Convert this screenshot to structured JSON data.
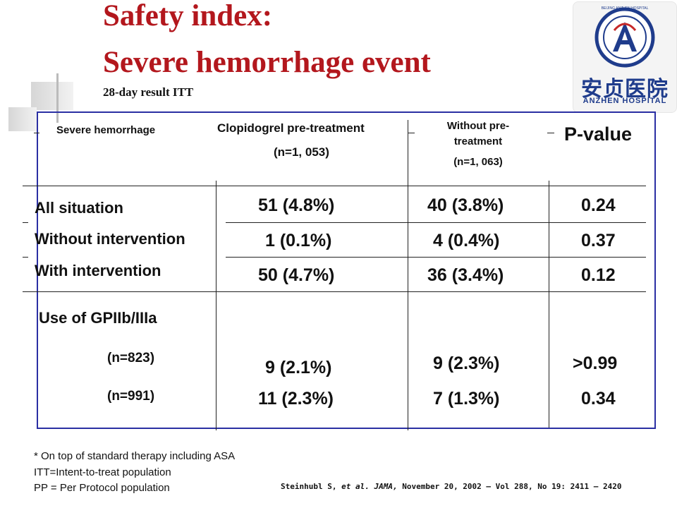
{
  "title": {
    "line1": "Safety index:",
    "line2": "Severe hemorrhage event",
    "subtitle": "28-day result ITT"
  },
  "logo": {
    "icon": "anzhen-hospital-logo",
    "name_cn": "安贞医院",
    "name_en": "ANZHEN HOSPITAL",
    "ring_text": "BEIJING ANZHEN HOSPITAL",
    "color": "#1f3c8c"
  },
  "table": {
    "header": {
      "row_label": "Severe hemorrhage",
      "col1": "Clopidogrel pre-treatment",
      "col1_n": "(n=1, 053)",
      "col2_line1": "Without pre-",
      "col2_line2": "treatment",
      "col2_n": "(n=1, 063)",
      "col3": "P-value"
    },
    "rows": [
      {
        "label": "All situation",
        "clopidogrel": "51  (4.8%)",
        "without": "40  (3.8%)",
        "p": "0.24"
      },
      {
        "label": "Without intervention",
        "clopidogrel": "1  (0.1%)",
        "without": "4  (0.4%)",
        "p": "0.37"
      },
      {
        "label": "With intervention",
        "clopidogrel": "50  (4.7%)",
        "without": "36  (3.4%)",
        "p": "0.12"
      }
    ],
    "gp": {
      "label": "Use of GPIIb/IIIa",
      "sub": [
        {
          "n": "(n=823)",
          "clopidogrel": "9  (2.1%)",
          "without": "9  (2.3%)",
          "p": ">0.99"
        },
        {
          "n": "(n=991)",
          "clopidogrel": "11  (2.3%)",
          "without": "7  (1.3%)",
          "p": "0.34"
        }
      ]
    },
    "frame_color": "#2a2fa3"
  },
  "footnotes": {
    "line1": "* On top of standard therapy including ASA",
    "line2": "ITT=Intent-to-treat population",
    "line3": "PP = Per Protocol population"
  },
  "citation": {
    "authors": "Steinhubl S, ",
    "etal": "et al.",
    "journal": "JAMA,",
    "rest": " November 20, 2002 – Vol 288, No 19: 2411 – 2420"
  },
  "title_color": "#b3171d"
}
